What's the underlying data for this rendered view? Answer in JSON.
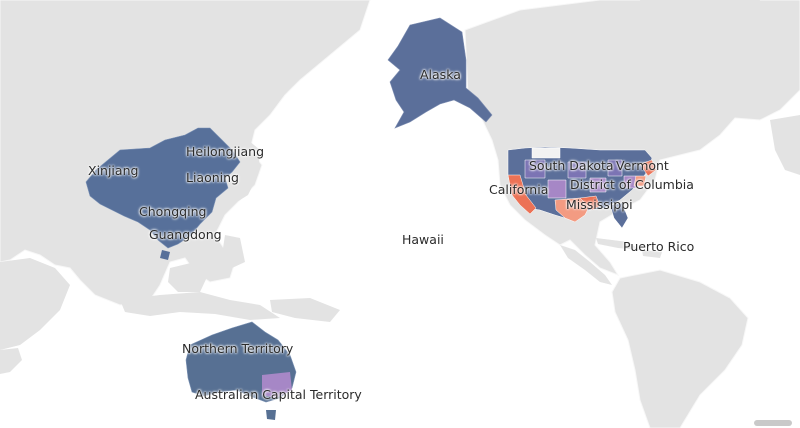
{
  "colors": {
    "ocean": "#ffffff",
    "land": "#e3e3e3",
    "border": "#f7f7f7",
    "dark_blue": "#5b6f9a",
    "mid_purple": "#7c74b4",
    "light_purple": "#a687c6",
    "orange": "#ec7256",
    "salmon": "#f39b82"
  },
  "regions": {
    "alaska": "Alaska",
    "hawaii": "Hawaii",
    "puerto_rico": "Puerto Rico",
    "california": "California",
    "south_dakota": "South Dakota",
    "vermont": "Vermont",
    "district_of_columbia": "District of Columbia",
    "mississippi": "Mississippi",
    "xinjiang": "Xinjiang",
    "heilongjiang": "Heilongjiang",
    "liaoning": "Liaoning",
    "chongqing": "Chongqing",
    "guangdong": "Guangdong",
    "northern_territory": "Northern Territory",
    "australian_capital_territory": "Australian Capital Territory"
  }
}
